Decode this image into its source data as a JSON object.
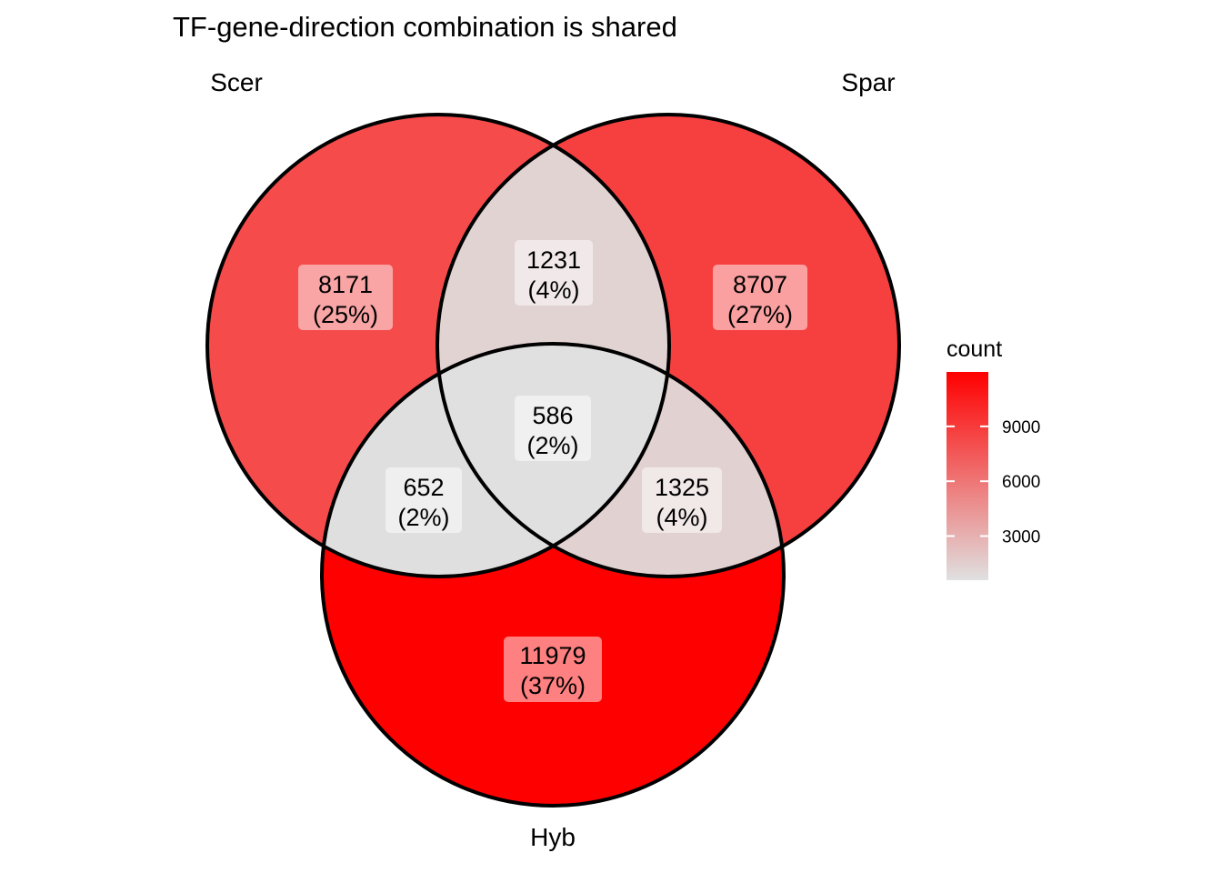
{
  "chart_data": {
    "type": "venn",
    "title": "TF-gene-direction combination is shared",
    "sets": [
      "Scer",
      "Spar",
      "Hyb"
    ],
    "regions": [
      {
        "key": "scer_only",
        "sets": [
          "Scer"
        ],
        "count": "8171",
        "percent": "(25%)",
        "value": 8171
      },
      {
        "key": "spar_only",
        "sets": [
          "Spar"
        ],
        "count": "8707",
        "percent": "(27%)",
        "value": 8707
      },
      {
        "key": "hyb_only",
        "sets": [
          "Hyb"
        ],
        "count": "11979",
        "percent": "(37%)",
        "value": 11979
      },
      {
        "key": "scer_spar",
        "sets": [
          "Scer",
          "Spar"
        ],
        "count": "1231",
        "percent": "(4%)",
        "value": 1231
      },
      {
        "key": "scer_hyb",
        "sets": [
          "Scer",
          "Hyb"
        ],
        "count": "652",
        "percent": "(2%)",
        "value": 652
      },
      {
        "key": "spar_hyb",
        "sets": [
          "Spar",
          "Hyb"
        ],
        "count": "1325",
        "percent": "(4%)",
        "value": 1325
      },
      {
        "key": "all",
        "sets": [
          "Scer",
          "Spar",
          "Hyb"
        ],
        "count": "586",
        "percent": "(2%)",
        "value": 586
      }
    ],
    "legend": {
      "title": "count",
      "ticks": [
        "3000",
        "6000",
        "9000"
      ],
      "tick_values": [
        3000,
        6000,
        9000
      ],
      "min": 586,
      "max": 11979,
      "low_color": "#e0e0e0",
      "high_color": "#ff0000",
      "placement": "right"
    }
  }
}
